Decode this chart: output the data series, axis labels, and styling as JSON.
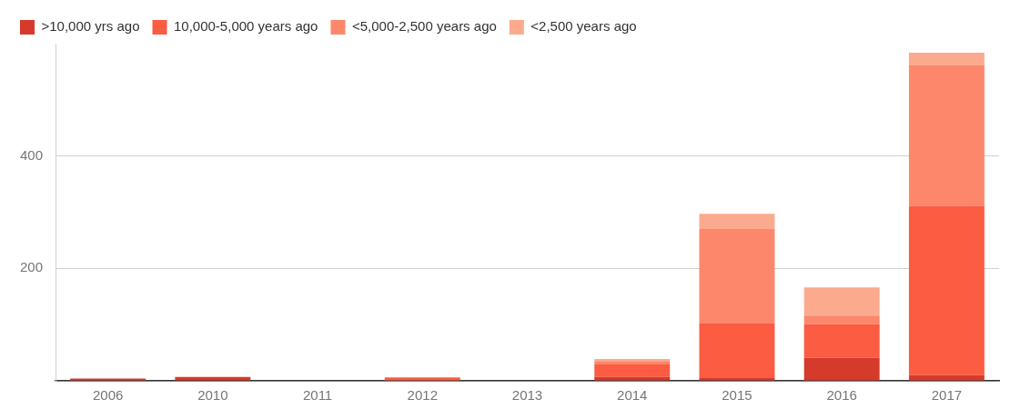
{
  "chart_data": {
    "type": "bar",
    "stacked": true,
    "categories": [
      "2006",
      "2010",
      "2011",
      "2012",
      "2013",
      "2014",
      "2015",
      "2016",
      "2017"
    ],
    "series": [
      {
        "name": ">10,000 yrs ago",
        "color": "#d63a2a",
        "values": [
          4,
          7,
          0,
          0,
          0,
          7,
          5,
          41,
          10
        ]
      },
      {
        "name": "10,000-5,000 years ago",
        "color": "#fb5c42",
        "values": [
          0,
          0,
          0,
          6,
          0,
          22,
          97,
          60,
          301
        ]
      },
      {
        "name": "<5,000-2,500 years ago",
        "color": "#fc876a",
        "values": [
          0,
          0,
          0,
          0,
          0,
          6,
          168,
          15,
          250
        ]
      },
      {
        "name": "<2,500 years ago",
        "color": "#fcaa8e",
        "values": [
          0,
          0,
          0,
          0,
          0,
          4,
          27,
          50,
          23
        ]
      }
    ],
    "ylim": [
      0,
      600
    ],
    "yticks": [
      {
        "value": 0,
        "label": null
      },
      200,
      400
    ],
    "grid": "y",
    "legend": "top left"
  }
}
